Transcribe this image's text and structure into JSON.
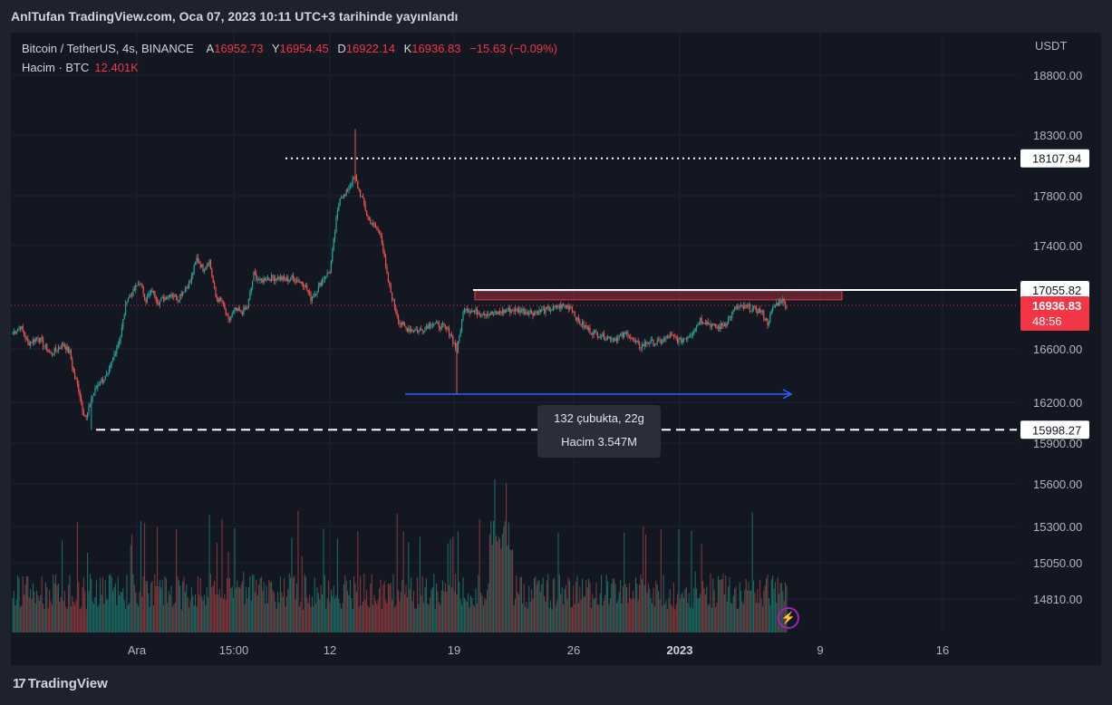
{
  "caption": "AnlTufan TradingView.com, Oca 07, 2023 10:11 UTC+3 tarihinde yayınlandı",
  "legend": {
    "symbol": "Bitcoin / TetherUS, 4s, BINANCE",
    "open_key": "A",
    "open": "16952.73",
    "high_key": "Y",
    "high": "16954.45",
    "low_key": "D",
    "low": "16922.14",
    "close_key": "K",
    "close": "16936.83",
    "change": "−15.63 (−0.09%)",
    "volume_label": "Hacim · BTC",
    "volume_value": "12.401K"
  },
  "measure_box": {
    "line1": "132 çubukta, 22g",
    "line2": "Hacim 3.547M"
  },
  "brand": {
    "mark": "17",
    "name": "TradingView"
  },
  "colors": {
    "up": "#26a69a",
    "down": "#ef5350",
    "bg": "#131722",
    "price_tag": "#f23645",
    "measure": "#2962ff"
  },
  "chart_data": {
    "type": "candlestick",
    "currency": "USDT",
    "price_axis": {
      "ticks": [
        18800,
        18300,
        17800,
        17400,
        16600,
        16200,
        15900,
        15600,
        15300,
        15050,
        14810
      ],
      "tick_labels": [
        "18800.00",
        "18300.00",
        "17800.00",
        "17400.00",
        "16600.00",
        "16200.00",
        "15900.00",
        "15600.00",
        "15300.00",
        "15050.00",
        "14810.00"
      ]
    },
    "time_axis": {
      "labels": [
        "Ara",
        "15:00",
        "12",
        "19",
        "26",
        "2023",
        "9",
        "16"
      ]
    },
    "current_price": {
      "value": 16936.83,
      "label": "16936.83",
      "countdown": "48:56"
    },
    "horizontal_lines": [
      {
        "value": 18107.94,
        "label": "18107.94",
        "style": "dotted"
      },
      {
        "value": 17055.82,
        "label": "17055.82",
        "style": "solid"
      },
      {
        "value": 15998.27,
        "label": "15998.27",
        "style": "dashed"
      }
    ],
    "resistance_zone": {
      "low": 16980,
      "high": 17050
    },
    "measure_range": {
      "low": 16262,
      "bars": 132,
      "days": 22,
      "volume": "3.547M"
    },
    "price_path": [
      [
        0,
        16720
      ],
      [
        6,
        16780
      ],
      [
        12,
        16640
      ],
      [
        20,
        16690
      ],
      [
        30,
        16560
      ],
      [
        40,
        16640
      ],
      [
        45,
        16570
      ],
      [
        48,
        16420
      ],
      [
        52,
        16300
      ],
      [
        55,
        16150
      ],
      [
        58,
        16080
      ],
      [
        62,
        16230
      ],
      [
        68,
        16350
      ],
      [
        75,
        16400
      ],
      [
        80,
        16560
      ],
      [
        85,
        16700
      ],
      [
        90,
        16990
      ],
      [
        95,
        17040
      ],
      [
        100,
        17120
      ],
      [
        105,
        16980
      ],
      [
        110,
        17050
      ],
      [
        115,
        16960
      ],
      [
        120,
        17000
      ],
      [
        125,
        17030
      ],
      [
        130,
        16990
      ],
      [
        135,
        17060
      ],
      [
        140,
        17120
      ],
      [
        145,
        17300
      ],
      [
        150,
        17220
      ],
      [
        155,
        17280
      ],
      [
        160,
        17000
      ],
      [
        165,
        16960
      ],
      [
        170,
        16810
      ],
      [
        175,
        16900
      ],
      [
        180,
        16880
      ],
      [
        185,
        16920
      ],
      [
        190,
        17180
      ],
      [
        195,
        17120
      ],
      [
        200,
        17150
      ],
      [
        210,
        17150
      ],
      [
        215,
        17130
      ],
      [
        220,
        17150
      ],
      [
        225,
        17130
      ],
      [
        230,
        17100
      ],
      [
        235,
        16990
      ],
      [
        240,
        17060
      ],
      [
        245,
        17150
      ],
      [
        250,
        17200
      ],
      [
        252,
        17350
      ],
      [
        255,
        17600
      ],
      [
        258,
        17800
      ],
      [
        262,
        17800
      ],
      [
        265,
        17880
      ],
      [
        270,
        17950
      ],
      [
        272,
        17870
      ],
      [
        276,
        17760
      ],
      [
        280,
        17620
      ],
      [
        285,
        17550
      ],
      [
        290,
        17500
      ],
      [
        295,
        17160
      ],
      [
        300,
        16960
      ],
      [
        305,
        16800
      ],
      [
        310,
        16760
      ],
      [
        320,
        16740
      ],
      [
        330,
        16800
      ],
      [
        340,
        16770
      ],
      [
        345,
        16720
      ],
      [
        350,
        16580
      ],
      [
        352,
        16700
      ],
      [
        356,
        16930
      ],
      [
        360,
        16900
      ],
      [
        370,
        16880
      ],
      [
        380,
        16870
      ],
      [
        390,
        16900
      ],
      [
        400,
        16900
      ],
      [
        410,
        16880
      ],
      [
        420,
        16900
      ],
      [
        425,
        16910
      ],
      [
        432,
        16930
      ],
      [
        440,
        16930
      ],
      [
        445,
        16820
      ],
      [
        455,
        16740
      ],
      [
        465,
        16700
      ],
      [
        475,
        16680
      ],
      [
        485,
        16720
      ],
      [
        490,
        16650
      ],
      [
        495,
        16620
      ],
      [
        500,
        16650
      ],
      [
        510,
        16650
      ],
      [
        518,
        16700
      ],
      [
        526,
        16660
      ],
      [
        535,
        16720
      ],
      [
        542,
        16830
      ],
      [
        548,
        16800
      ],
      [
        555,
        16760
      ],
      [
        562,
        16800
      ],
      [
        570,
        16920
      ],
      [
        580,
        16920
      ],
      [
        590,
        16890
      ],
      [
        595,
        16800
      ],
      [
        600,
        16930
      ],
      [
        606,
        16980
      ],
      [
        610,
        16940
      ]
    ]
  }
}
